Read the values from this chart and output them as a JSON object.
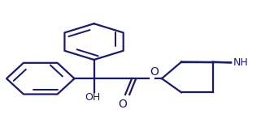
{
  "bg_color": "#ffffff",
  "line_color": "#1a1a6e",
  "line_width": 1.6,
  "font_size": 9,
  "figsize": [
    3.21,
    1.72
  ],
  "dpi": 100,
  "oh_label": "OH",
  "nh_label": "NH",
  "o_label": "O"
}
